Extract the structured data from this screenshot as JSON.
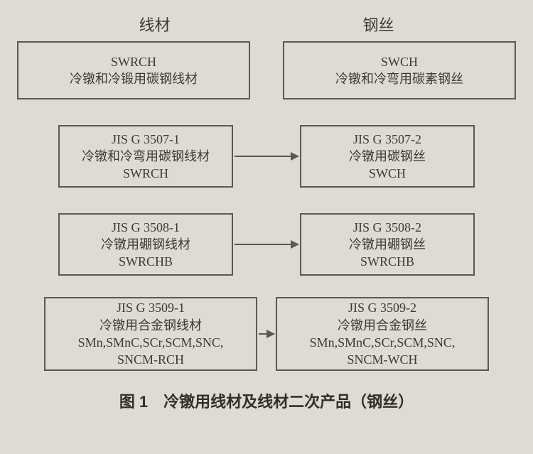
{
  "diagram": {
    "type": "flowchart",
    "background_color": "#dddcd4",
    "border_color": "#5a5950",
    "text_color": "#3a3a36",
    "font_size_box": 18,
    "font_size_header": 22,
    "font_size_caption": 22,
    "headers": {
      "left": "线材",
      "right": "钢丝"
    },
    "rows": [
      {
        "left": {
          "l1": "SWRCH",
          "l2": "冷镦和冷锻用碳钢线材"
        },
        "right": {
          "l1": "SWCH",
          "l2": "冷镦和冷弯用碳素钢丝"
        },
        "arrow": false
      },
      {
        "left": {
          "l1": "JIS G 3507-1",
          "l2": "冷镦和冷弯用碳钢线材",
          "l3": "SWRCH"
        },
        "right": {
          "l1": "JIS G 3507-2",
          "l2": "冷镦用碳钢丝",
          "l3": "SWCH"
        },
        "arrow": true
      },
      {
        "left": {
          "l1": "JIS G 3508-1",
          "l2": "冷镦用硼钢线材",
          "l3": "SWRCHB"
        },
        "right": {
          "l1": "JIS G 3508-2",
          "l2": "冷镦用硼钢丝",
          "l3": "SWRCHB"
        },
        "arrow": true
      },
      {
        "left": {
          "l1": "JIS G 3509-1",
          "l2": "冷镦用合金钢线材",
          "l3": "SMn,SMnC,SCr,SCM,SNC,",
          "l4": "SNCM-RCH"
        },
        "right": {
          "l1": "JIS G 3509-2",
          "l2": "冷镦用合金钢丝",
          "l3": "SMn,SMnC,SCr,SCM,SNC,",
          "l4": "SNCM-WCH"
        },
        "arrow": true
      }
    ],
    "caption": "图 1　冷镦用线材及线材二次产品（钢丝）"
  }
}
